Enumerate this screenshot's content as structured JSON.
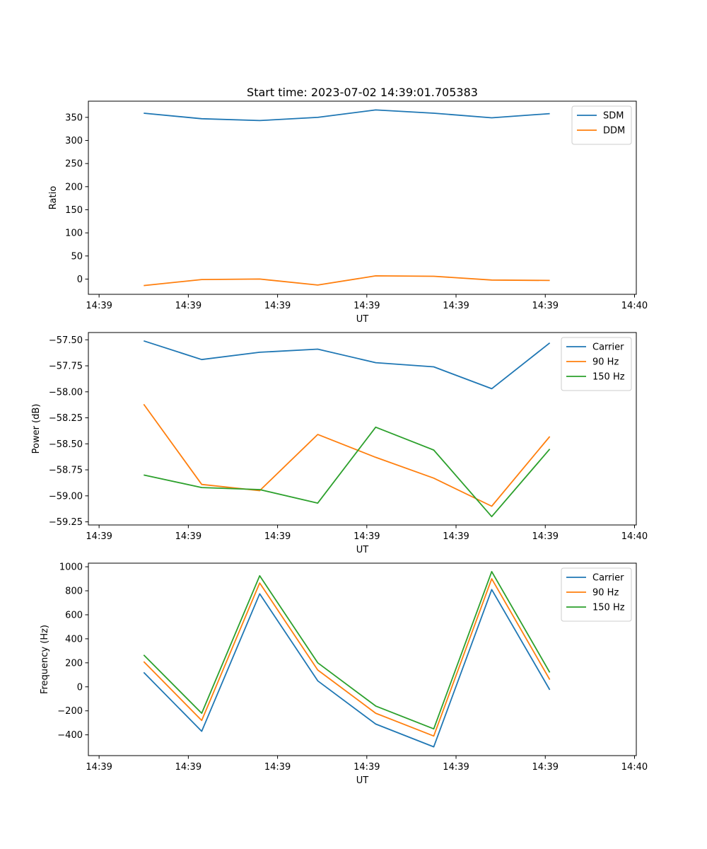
{
  "figure": {
    "title": "Start time: 2023-07-02 14:39:01.705383"
  },
  "chart_data": [
    {
      "type": "line",
      "title": "Start time: 2023-07-02 14:39:01.705383",
      "xlabel": "UT",
      "ylabel": "Ratio",
      "x_tick_labels": [
        "14:39",
        "14:39",
        "14:39",
        "14:39",
        "14:39",
        "14:39",
        "14:40"
      ],
      "x_tick_values": [
        0,
        10,
        20,
        30,
        40,
        50,
        60
      ],
      "xlim": [
        -1.2,
        60.2
      ],
      "x": [
        5,
        11.5,
        18,
        24.5,
        31,
        37.5,
        44,
        50.5
      ],
      "y_ticks": [
        0,
        50,
        100,
        150,
        200,
        250,
        300,
        350
      ],
      "ylim": [
        -33,
        385
      ],
      "legend_position": "upper right",
      "grid": false,
      "series": [
        {
          "name": "SDM",
          "color": "#1f77b4",
          "values": [
            359,
            347,
            343,
            350,
            366,
            359,
            349,
            358
          ]
        },
        {
          "name": "DDM",
          "color": "#ff7f0e",
          "values": [
            -14,
            -1,
            0,
            -13,
            7,
            6,
            -2,
            -3
          ]
        }
      ]
    },
    {
      "type": "line",
      "title": "",
      "xlabel": "UT",
      "ylabel": "Power (dB)",
      "x_tick_labels": [
        "14:39",
        "14:39",
        "14:39",
        "14:39",
        "14:39",
        "14:39",
        "14:40"
      ],
      "x_tick_values": [
        0,
        10,
        20,
        30,
        40,
        50,
        60
      ],
      "xlim": [
        -1.2,
        60.2
      ],
      "x": [
        5,
        11.5,
        18,
        24.5,
        31,
        37.5,
        44,
        50.5
      ],
      "y_ticks": [
        -59.25,
        -59.0,
        -58.75,
        -58.5,
        -58.25,
        -58.0,
        -57.75,
        -57.5
      ],
      "y_tick_labels": [
        "−59.25",
        "−59.00",
        "−58.75",
        "−58.50",
        "−58.25",
        "−58.00",
        "−57.75",
        "−57.50"
      ],
      "ylim": [
        -59.28,
        -57.43
      ],
      "legend_position": "upper right",
      "grid": false,
      "series": [
        {
          "name": "Carrier",
          "color": "#1f77b4",
          "values": [
            -57.51,
            -57.69,
            -57.62,
            -57.59,
            -57.72,
            -57.76,
            -57.97,
            -57.53
          ]
        },
        {
          "name": "90 Hz",
          "color": "#ff7f0e",
          "values": [
            -58.12,
            -58.89,
            -58.95,
            -58.41,
            -58.63,
            -58.83,
            -59.1,
            -58.43
          ]
        },
        {
          "name": "150 Hz",
          "color": "#2ca02c",
          "values": [
            -58.8,
            -58.92,
            -58.94,
            -59.07,
            -58.34,
            -58.56,
            -59.2,
            -58.55
          ]
        }
      ]
    },
    {
      "type": "line",
      "title": "",
      "xlabel": "UT",
      "ylabel": "Frequency (Hz)",
      "x_tick_labels": [
        "14:39",
        "14:39",
        "14:39",
        "14:39",
        "14:39",
        "14:39",
        "14:40"
      ],
      "x_tick_values": [
        0,
        10,
        20,
        30,
        40,
        50,
        60
      ],
      "xlim": [
        -1.2,
        60.2
      ],
      "x": [
        5,
        11.5,
        18,
        24.5,
        31,
        37.5,
        44,
        50.5
      ],
      "y_ticks": [
        -400,
        -200,
        0,
        200,
        400,
        600,
        800,
        1000
      ],
      "y_tick_labels": [
        "−400",
        "−200",
        "0",
        "200",
        "400",
        "600",
        "800",
        "1000"
      ],
      "ylim": [
        -573,
        1030
      ],
      "legend_position": "upper right",
      "grid": false,
      "series": [
        {
          "name": "Carrier",
          "color": "#1f77b4",
          "values": [
            120,
            -370,
            775,
            50,
            -310,
            -500,
            810,
            -25
          ]
        },
        {
          "name": "90 Hz",
          "color": "#ff7f0e",
          "values": [
            210,
            -280,
            865,
            140,
            -220,
            -410,
            900,
            60
          ]
        },
        {
          "name": "150 Hz",
          "color": "#2ca02c",
          "values": [
            265,
            -220,
            925,
            200,
            -160,
            -350,
            960,
            120
          ]
        }
      ]
    }
  ]
}
